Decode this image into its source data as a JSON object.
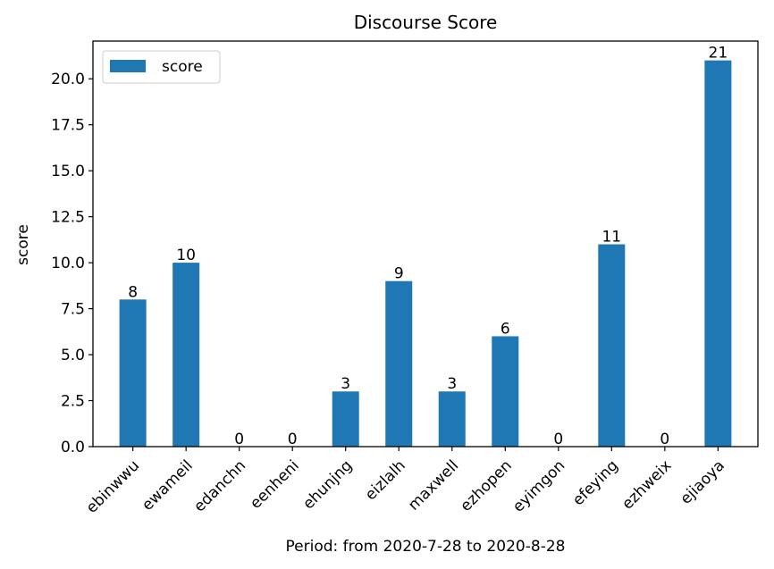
{
  "chart_data": {
    "type": "bar",
    "title": "Discourse Score",
    "xlabel": "Period: from 2020-7-28 to 2020-8-28",
    "ylabel": "score",
    "categories": [
      "ebinwwu",
      "ewameil",
      "edanchn",
      "eenheni",
      "ehunjng",
      "eizlalh",
      "maxwell",
      "ezhopen",
      "eyimgon",
      "efeying",
      "ezhweix",
      "ejiaoya"
    ],
    "series": [
      {
        "name": "score",
        "values": [
          8,
          10,
          0,
          0,
          3,
          9,
          3,
          6,
          0,
          11,
          0,
          21
        ],
        "color": "#1f77b4"
      }
    ],
    "data_labels": [
      "8",
      "10",
      "0",
      "0",
      "3",
      "9",
      "3",
      "6",
      "0",
      "11",
      "0",
      "21"
    ],
    "ylim": [
      0,
      22.05
    ],
    "yticks": [
      0,
      2.5,
      5,
      7.5,
      10,
      12.5,
      15,
      17.5,
      20
    ],
    "ytick_labels": [
      "0.0",
      "2.5",
      "5.0",
      "7.5",
      "10.0",
      "12.5",
      "15.0",
      "17.5",
      "20.0"
    ],
    "grid": false,
    "legend_position": "upper-left"
  }
}
